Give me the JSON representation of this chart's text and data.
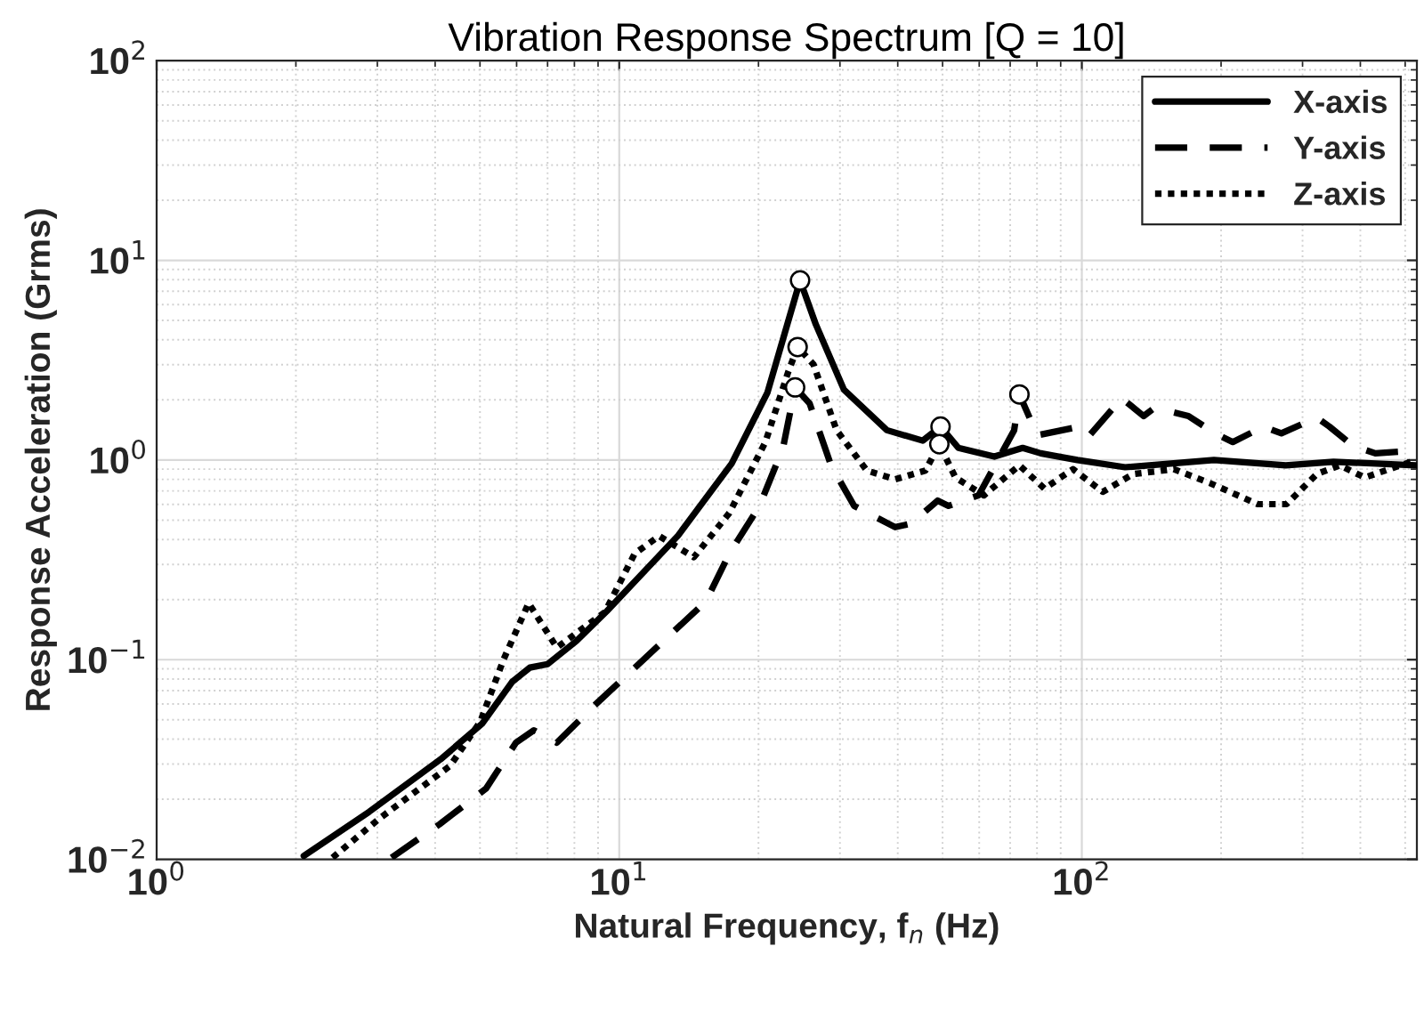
{
  "chart_data": {
    "type": "line",
    "title": "Vibration Response Spectrum [Q = 10]",
    "xlabel": "Natural Frequency, f$_{n}$ (Hz)",
    "ylabel": "Response Acceleration (Grms)",
    "log": "xy",
    "grid": true,
    "legend": "top right",
    "xlim": [
      1,
      530
    ],
    "ylim": [
      0.01,
      100
    ],
    "xticks": [
      {
        "value": 1,
        "label": "10$^{0}$"
      },
      {
        "value": 10,
        "label": "10$^{1}$"
      },
      {
        "value": 100,
        "label": "10$^{2}$"
      }
    ],
    "yticks": [
      {
        "value": 0.01,
        "label": "10$^{−2}$"
      },
      {
        "value": 0.1,
        "label": "10$^{−1}$"
      },
      {
        "value": 1,
        "label": "10$^{0}$"
      },
      {
        "value": 10,
        "label": "10$^{1}$"
      },
      {
        "value": 100,
        "label": "10$^{2}$"
      }
    ],
    "series": [
      {
        "name": "X-axis",
        "color": "#000000",
        "line_style": "solid",
        "x": [
          2.08,
          2.88,
          4.11,
          5.05,
          5.87,
          6.41,
          7.0,
          8.08,
          9.4,
          13.4,
          17.5,
          20.9,
          24.6,
          26.6,
          30.6,
          37.9,
          45.3,
          49.5,
          54.1,
          64.7,
          74.5,
          81.5,
          97.8,
          124,
          193,
          276,
          350,
          527
        ],
        "values": [
          0.0104,
          0.0173,
          0.0317,
          0.0477,
          0.0775,
          0.0913,
          0.095,
          0.124,
          0.175,
          0.418,
          0.96,
          2.17,
          7.93,
          4.78,
          2.25,
          1.41,
          1.25,
          1.47,
          1.15,
          1.04,
          1.15,
          1.08,
          1.0,
          0.92,
          1.0,
          0.94,
          0.98,
          0.94
        ]
      },
      {
        "name": "Y-axis",
        "color": "#000000",
        "line_style": "dashed",
        "x": [
          3.22,
          4.09,
          5.15,
          5.98,
          6.54,
          7.33,
          8.75,
          15.4,
          17.3,
          20.1,
          22.6,
          24.0,
          25.8,
          28.7,
          32.2,
          39.5,
          42.7,
          48.8,
          51.5,
          59.8,
          71.4,
          73.3,
          80.1,
          99.1,
          104,
          122,
          136,
          143,
          158,
          170,
          194,
          212,
          247,
          270,
          322,
          343,
          385,
          431,
          515
        ],
        "values": [
          0.0102,
          0.015,
          0.0226,
          0.0384,
          0.0443,
          0.0384,
          0.0577,
          0.196,
          0.34,
          0.589,
          1.15,
          2.31,
          1.92,
          0.94,
          0.589,
          0.461,
          0.48,
          0.626,
          0.589,
          0.665,
          1.41,
          2.13,
          1.33,
          1.47,
          1.33,
          2.04,
          1.66,
          1.81,
          1.73,
          1.66,
          1.36,
          1.23,
          1.47,
          1.36,
          1.63,
          1.47,
          1.18,
          1.08,
          1.11
        ]
      },
      {
        "name": "Z-axis",
        "color": "#000000",
        "line_style": "dotted",
        "x": [
          2.4,
          3.03,
          4.31,
          5.01,
          5.62,
          6.37,
          7.33,
          9.31,
          10.8,
          12.2,
          14.5,
          17.3,
          20.7,
          23.2,
          24.3,
          26.3,
          29.5,
          34.3,
          39.5,
          45.9,
          49.2,
          53.3,
          61.4,
          73.3,
          83.0,
          95.7,
          111,
          129,
          158,
          189,
          240,
          277,
          322,
          361,
          409,
          488,
          515
        ],
        "values": [
          0.0102,
          0.016,
          0.0294,
          0.049,
          0.1,
          0.192,
          0.115,
          0.173,
          0.34,
          0.416,
          0.326,
          0.543,
          1.23,
          2.77,
          3.68,
          3.01,
          1.41,
          0.885,
          0.8,
          0.885,
          1.2,
          0.817,
          0.665,
          0.94,
          0.72,
          0.9,
          0.693,
          0.85,
          0.9,
          0.767,
          0.601,
          0.601,
          0.85,
          0.94,
          0.817,
          0.94,
          0.98
        ]
      },
      {
        "type": "scatter",
        "marker": "circle",
        "color": "#000000",
        "x": [
          24.6,
          24.3,
          24.0,
          49.5,
          49.2,
          73.3
        ],
        "values": [
          7.93,
          3.68,
          2.31,
          1.47,
          1.2,
          2.13
        ]
      }
    ]
  }
}
